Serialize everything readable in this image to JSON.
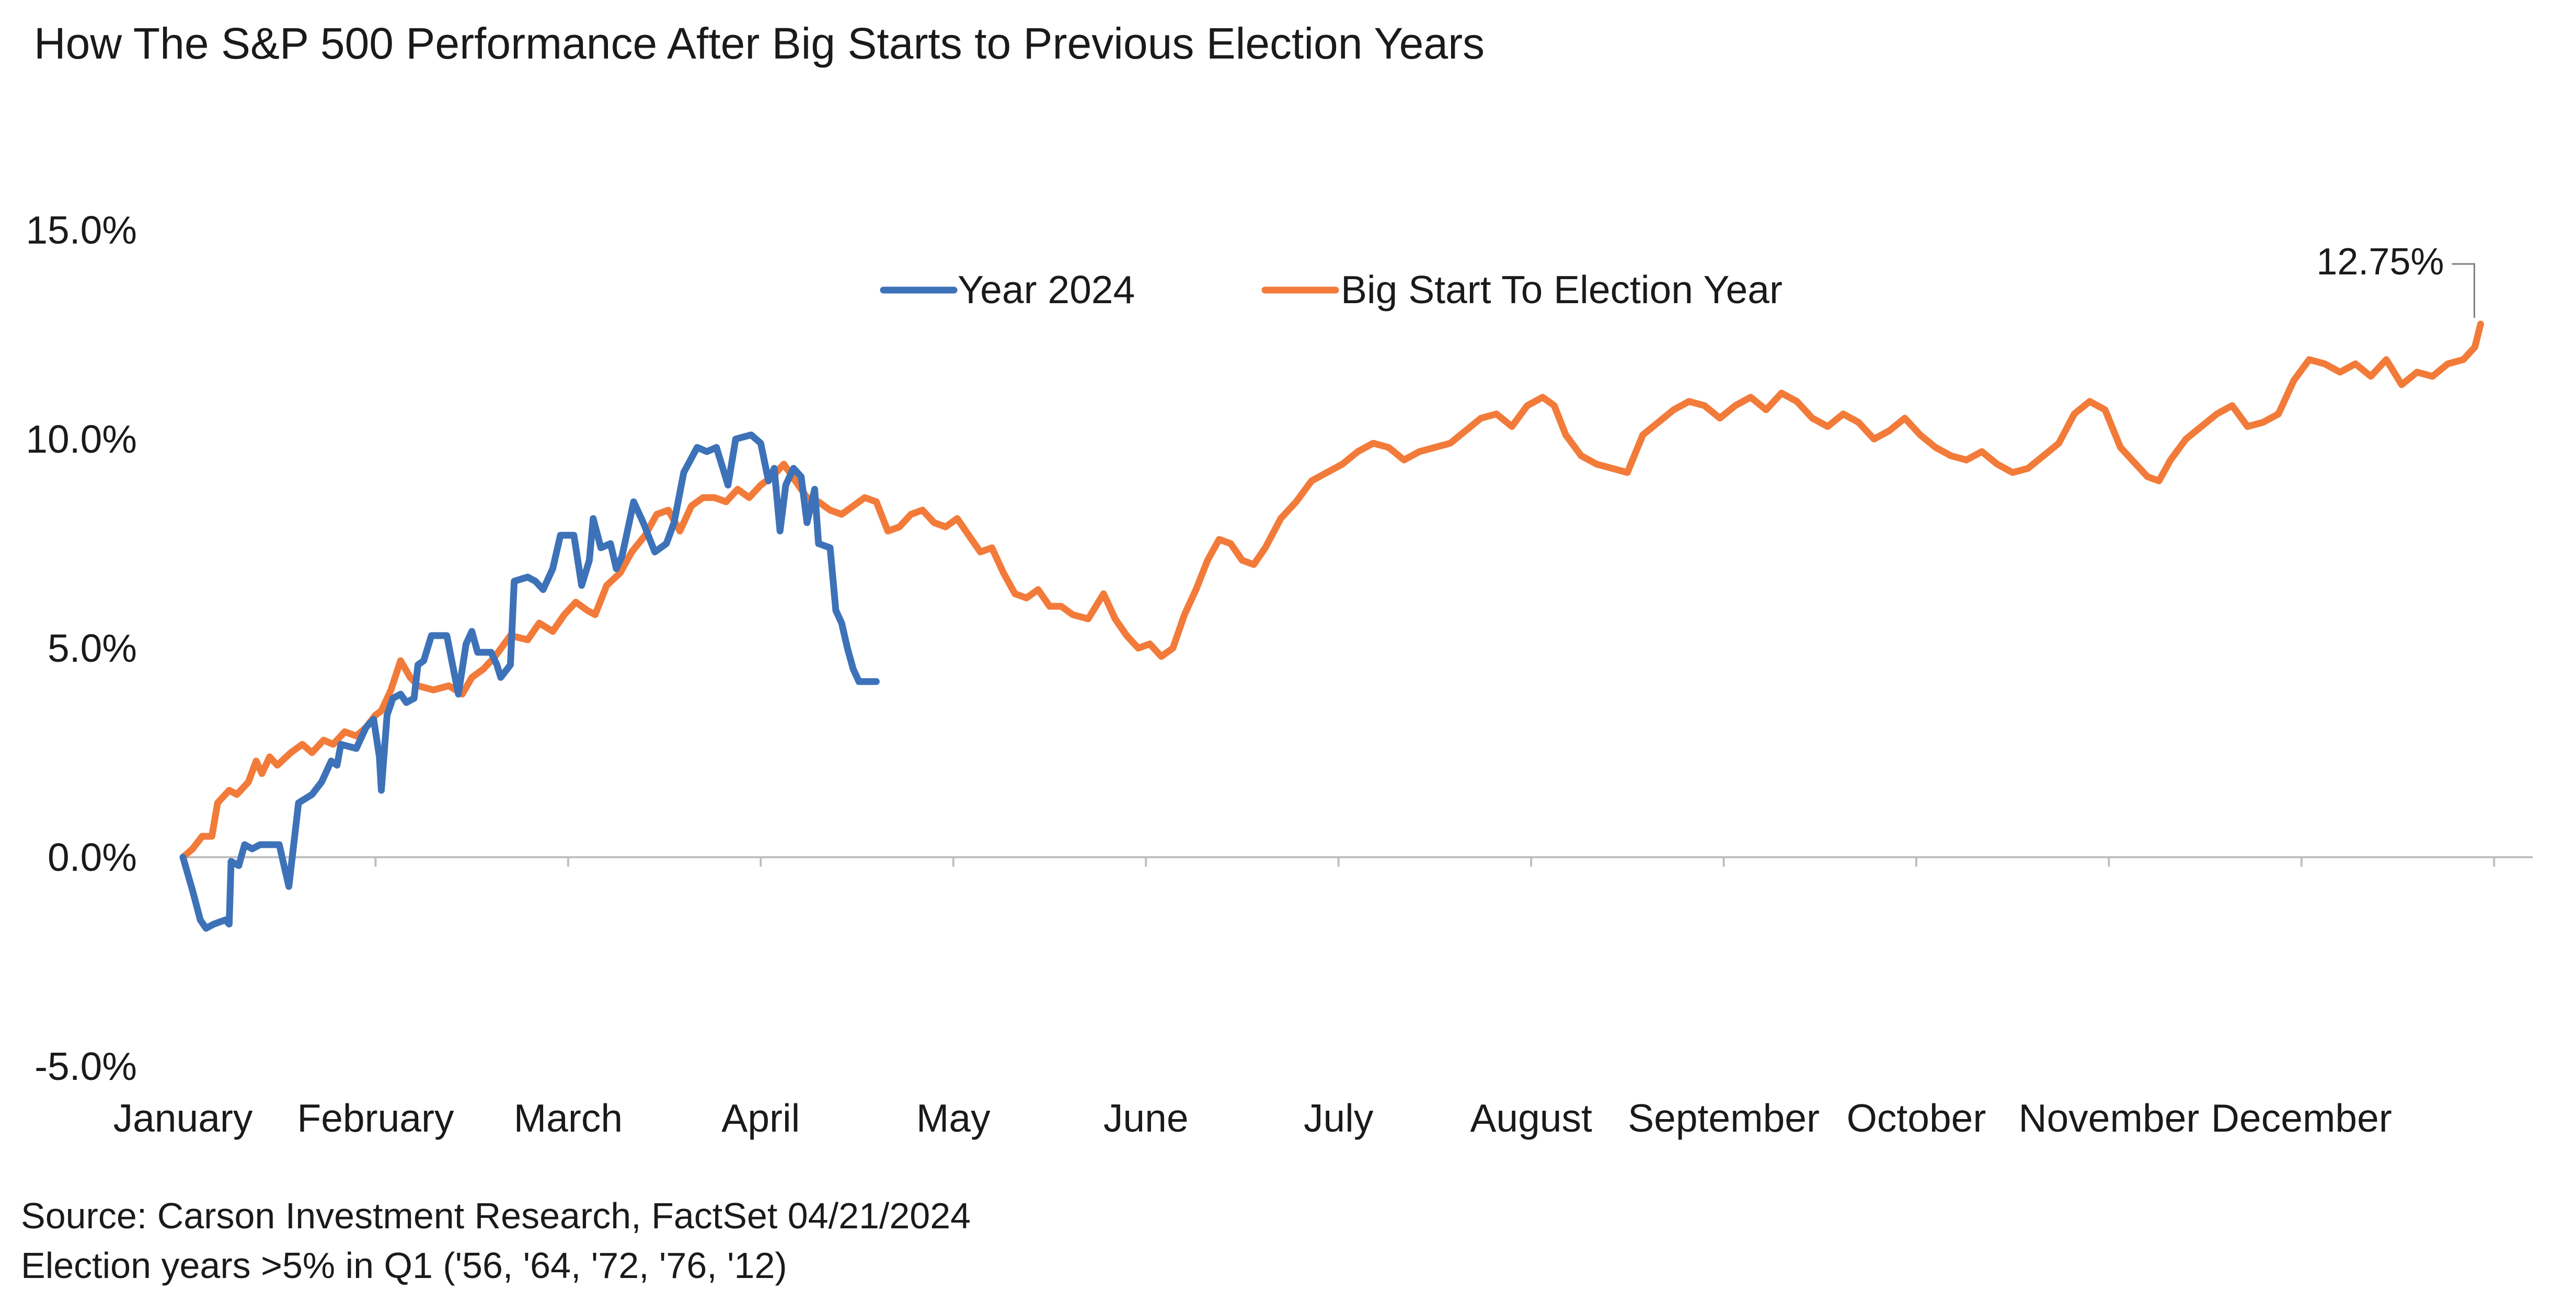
{
  "chart_data": {
    "type": "line",
    "title": "How The S&P 500 Performance After Big Starts to Previous Election Years",
    "xlabel": "",
    "ylabel": "",
    "x_categories": [
      "January",
      "February",
      "March",
      "April",
      "May",
      "June",
      "July",
      "August",
      "September",
      "October",
      "November",
      "December"
    ],
    "x_range": [
      0,
      12.2
    ],
    "ylim": [
      -5.0,
      15.0
    ],
    "y_ticks": [
      {
        "value": 15,
        "label": "15.0%"
      },
      {
        "value": 10,
        "label": "10.0%"
      },
      {
        "value": 5,
        "label": "5.0%"
      },
      {
        "value": 0,
        "label": "0.0%"
      },
      {
        "value": -5,
        "label": "-5.0%"
      }
    ],
    "grid": false,
    "legend_position": "top-center",
    "series": [
      {
        "name": "Year 2024",
        "color": "#3d72b8",
        "points": [
          [
            0.0,
            0.0
          ],
          [
            0.05,
            -0.8
          ],
          [
            0.09,
            -1.5
          ],
          [
            0.12,
            -1.7
          ],
          [
            0.16,
            -1.6
          ],
          [
            0.22,
            -1.5
          ],
          [
            0.24,
            -1.6
          ],
          [
            0.25,
            -0.1
          ],
          [
            0.29,
            -0.2
          ],
          [
            0.32,
            0.3
          ],
          [
            0.36,
            0.2
          ],
          [
            0.4,
            0.3
          ],
          [
            0.46,
            0.3
          ],
          [
            0.5,
            0.3
          ],
          [
            0.55,
            -0.7
          ],
          [
            0.6,
            1.3
          ],
          [
            0.67,
            1.5
          ],
          [
            0.72,
            1.8
          ],
          [
            0.77,
            2.3
          ],
          [
            0.8,
            2.2
          ],
          [
            0.82,
            2.7
          ],
          [
            0.9,
            2.6
          ],
          [
            0.95,
            3.1
          ],
          [
            0.99,
            3.3
          ],
          [
            1.02,
            2.4
          ],
          [
            1.03,
            1.6
          ],
          [
            1.06,
            3.4
          ],
          [
            1.09,
            3.8
          ],
          [
            1.13,
            3.9
          ],
          [
            1.16,
            3.7
          ],
          [
            1.2,
            3.8
          ],
          [
            1.22,
            4.6
          ],
          [
            1.25,
            4.7
          ],
          [
            1.29,
            5.3
          ],
          [
            1.37,
            5.3
          ],
          [
            1.4,
            4.6
          ],
          [
            1.43,
            3.9
          ],
          [
            1.47,
            5.1
          ],
          [
            1.5,
            5.4
          ],
          [
            1.53,
            4.9
          ],
          [
            1.6,
            4.9
          ],
          [
            1.63,
            4.6
          ],
          [
            1.65,
            4.3
          ],
          [
            1.7,
            4.6
          ],
          [
            1.72,
            6.6
          ],
          [
            1.79,
            6.7
          ],
          [
            1.83,
            6.6
          ],
          [
            1.87,
            6.4
          ],
          [
            1.92,
            6.9
          ],
          [
            1.96,
            7.7
          ],
          [
            2.03,
            7.7
          ],
          [
            2.07,
            6.5
          ],
          [
            2.11,
            7.1
          ],
          [
            2.13,
            8.1
          ],
          [
            2.17,
            7.4
          ],
          [
            2.22,
            7.5
          ],
          [
            2.25,
            6.9
          ],
          [
            2.28,
            7.2
          ],
          [
            2.34,
            8.5
          ],
          [
            2.39,
            8.0
          ],
          [
            2.45,
            7.3
          ],
          [
            2.51,
            7.5
          ],
          [
            2.55,
            8.0
          ],
          [
            2.6,
            9.2
          ],
          [
            2.67,
            9.8
          ],
          [
            2.72,
            9.7
          ],
          [
            2.77,
            9.8
          ],
          [
            2.83,
            8.9
          ],
          [
            2.87,
            10.0
          ],
          [
            2.95,
            10.1
          ],
          [
            3.0,
            9.9
          ],
          [
            3.04,
            9.0
          ],
          [
            3.07,
            9.3
          ],
          [
            3.1,
            7.8
          ],
          [
            3.13,
            8.9
          ],
          [
            3.17,
            9.3
          ],
          [
            3.21,
            9.1
          ],
          [
            3.24,
            8.0
          ],
          [
            3.28,
            8.8
          ],
          [
            3.3,
            7.5
          ],
          [
            3.36,
            7.4
          ],
          [
            3.39,
            5.9
          ],
          [
            3.42,
            5.6
          ],
          [
            3.45,
            5.0
          ],
          [
            3.48,
            4.5
          ],
          [
            3.51,
            4.2
          ],
          [
            3.57,
            4.2
          ],
          [
            3.6,
            4.2
          ]
        ]
      },
      {
        "name": "Big Start To Election Year",
        "color": "#f27b3a",
        "points": [
          [
            0.0,
            0.0
          ],
          [
            0.05,
            0.2
          ],
          [
            0.1,
            0.5
          ],
          [
            0.15,
            0.5
          ],
          [
            0.18,
            1.3
          ],
          [
            0.24,
            1.6
          ],
          [
            0.28,
            1.5
          ],
          [
            0.34,
            1.8
          ],
          [
            0.38,
            2.3
          ],
          [
            0.41,
            2.0
          ],
          [
            0.45,
            2.4
          ],
          [
            0.49,
            2.2
          ],
          [
            0.56,
            2.5
          ],
          [
            0.62,
            2.7
          ],
          [
            0.67,
            2.5
          ],
          [
            0.73,
            2.8
          ],
          [
            0.78,
            2.7
          ],
          [
            0.84,
            3.0
          ],
          [
            0.9,
            2.9
          ],
          [
            0.95,
            3.1
          ],
          [
            1.0,
            3.4
          ],
          [
            1.03,
            3.5
          ],
          [
            1.08,
            4.0
          ],
          [
            1.13,
            4.7
          ],
          [
            1.18,
            4.3
          ],
          [
            1.22,
            4.1
          ],
          [
            1.3,
            4.0
          ],
          [
            1.38,
            4.1
          ],
          [
            1.45,
            3.9
          ],
          [
            1.5,
            4.3
          ],
          [
            1.56,
            4.5
          ],
          [
            1.62,
            4.8
          ],
          [
            1.7,
            5.3
          ],
          [
            1.79,
            5.2
          ],
          [
            1.85,
            5.6
          ],
          [
            1.92,
            5.4
          ],
          [
            1.98,
            5.8
          ],
          [
            2.04,
            6.1
          ],
          [
            2.1,
            5.9
          ],
          [
            2.14,
            5.8
          ],
          [
            2.2,
            6.5
          ],
          [
            2.27,
            6.8
          ],
          [
            2.33,
            7.3
          ],
          [
            2.4,
            7.7
          ],
          [
            2.46,
            8.2
          ],
          [
            2.52,
            8.3
          ],
          [
            2.58,
            7.8
          ],
          [
            2.64,
            8.4
          ],
          [
            2.7,
            8.6
          ],
          [
            2.76,
            8.6
          ],
          [
            2.82,
            8.5
          ],
          [
            2.88,
            8.8
          ],
          [
            2.94,
            8.6
          ],
          [
            3.0,
            8.9
          ],
          [
            3.06,
            9.1
          ],
          [
            3.12,
            9.4
          ],
          [
            3.18,
            9.0
          ],
          [
            3.24,
            8.6
          ],
          [
            3.3,
            8.5
          ],
          [
            3.36,
            8.3
          ],
          [
            3.42,
            8.2
          ],
          [
            3.48,
            8.4
          ],
          [
            3.54,
            8.6
          ],
          [
            3.6,
            8.5
          ],
          [
            3.66,
            7.8
          ],
          [
            3.72,
            7.9
          ],
          [
            3.78,
            8.2
          ],
          [
            3.84,
            8.3
          ],
          [
            3.9,
            8.0
          ],
          [
            3.96,
            7.9
          ],
          [
            4.02,
            8.1
          ],
          [
            4.08,
            7.7
          ],
          [
            4.14,
            7.3
          ],
          [
            4.2,
            7.4
          ],
          [
            4.26,
            6.8
          ],
          [
            4.32,
            6.3
          ],
          [
            4.38,
            6.2
          ],
          [
            4.44,
            6.4
          ],
          [
            4.5,
            6.0
          ],
          [
            4.56,
            6.0
          ],
          [
            4.62,
            5.8
          ],
          [
            4.7,
            5.7
          ],
          [
            4.78,
            6.3
          ],
          [
            4.84,
            5.7
          ],
          [
            4.9,
            5.3
          ],
          [
            4.96,
            5.0
          ],
          [
            5.02,
            5.1
          ],
          [
            5.08,
            4.8
          ],
          [
            5.14,
            5.0
          ],
          [
            5.2,
            5.8
          ],
          [
            5.26,
            6.4
          ],
          [
            5.32,
            7.1
          ],
          [
            5.38,
            7.6
          ],
          [
            5.44,
            7.5
          ],
          [
            5.5,
            7.1
          ],
          [
            5.56,
            7.0
          ],
          [
            5.62,
            7.4
          ],
          [
            5.7,
            8.1
          ],
          [
            5.78,
            8.5
          ],
          [
            5.86,
            9.0
          ],
          [
            5.94,
            9.2
          ],
          [
            6.02,
            9.4
          ],
          [
            6.1,
            9.7
          ],
          [
            6.18,
            9.9
          ],
          [
            6.26,
            9.8
          ],
          [
            6.34,
            9.5
          ],
          [
            6.42,
            9.7
          ],
          [
            6.5,
            9.8
          ],
          [
            6.58,
            9.9
          ],
          [
            6.66,
            10.2
          ],
          [
            6.74,
            10.5
          ],
          [
            6.82,
            10.6
          ],
          [
            6.9,
            10.3
          ],
          [
            6.98,
            10.8
          ],
          [
            7.06,
            11.0
          ],
          [
            7.12,
            10.8
          ],
          [
            7.18,
            10.1
          ],
          [
            7.26,
            9.6
          ],
          [
            7.34,
            9.4
          ],
          [
            7.42,
            9.3
          ],
          [
            7.5,
            9.2
          ],
          [
            7.58,
            10.1
          ],
          [
            7.66,
            10.4
          ],
          [
            7.74,
            10.7
          ],
          [
            7.82,
            10.9
          ],
          [
            7.9,
            10.8
          ],
          [
            7.98,
            10.5
          ],
          [
            8.06,
            10.8
          ],
          [
            8.14,
            11.0
          ],
          [
            8.22,
            10.7
          ],
          [
            8.3,
            11.1
          ],
          [
            8.38,
            10.9
          ],
          [
            8.46,
            10.5
          ],
          [
            8.54,
            10.3
          ],
          [
            8.62,
            10.6
          ],
          [
            8.7,
            10.4
          ],
          [
            8.78,
            10.0
          ],
          [
            8.86,
            10.2
          ],
          [
            8.94,
            10.5
          ],
          [
            9.02,
            10.1
          ],
          [
            9.1,
            9.8
          ],
          [
            9.18,
            9.6
          ],
          [
            9.26,
            9.5
          ],
          [
            9.34,
            9.7
          ],
          [
            9.42,
            9.4
          ],
          [
            9.5,
            9.2
          ],
          [
            9.58,
            9.3
          ],
          [
            9.66,
            9.6
          ],
          [
            9.74,
            9.9
          ],
          [
            9.82,
            10.6
          ],
          [
            9.9,
            10.9
          ],
          [
            9.98,
            10.7
          ],
          [
            10.06,
            9.8
          ],
          [
            10.14,
            9.4
          ],
          [
            10.2,
            9.1
          ],
          [
            10.26,
            9.0
          ],
          [
            10.32,
            9.5
          ],
          [
            10.4,
            10.0
          ],
          [
            10.48,
            10.3
          ],
          [
            10.56,
            10.6
          ],
          [
            10.64,
            10.8
          ],
          [
            10.72,
            10.3
          ],
          [
            10.8,
            10.4
          ],
          [
            10.88,
            10.6
          ],
          [
            10.96,
            11.4
          ],
          [
            11.04,
            11.9
          ],
          [
            11.12,
            11.8
          ],
          [
            11.2,
            11.6
          ],
          [
            11.28,
            11.8
          ],
          [
            11.36,
            11.5
          ],
          [
            11.44,
            11.9
          ],
          [
            11.52,
            11.3
          ],
          [
            11.6,
            11.6
          ],
          [
            11.68,
            11.5
          ],
          [
            11.76,
            11.8
          ],
          [
            11.84,
            11.9
          ],
          [
            11.9,
            12.2
          ],
          [
            11.93,
            12.75
          ]
        ]
      }
    ],
    "annotations": [
      {
        "text": "12.75%",
        "x": 11.93,
        "y": 12.75
      }
    ],
    "source": "Source: Carson Investment Research, FactSet 04/21/2024",
    "note": "Election years >5% in Q1 ('56, '64, '72, '76, '12)"
  }
}
